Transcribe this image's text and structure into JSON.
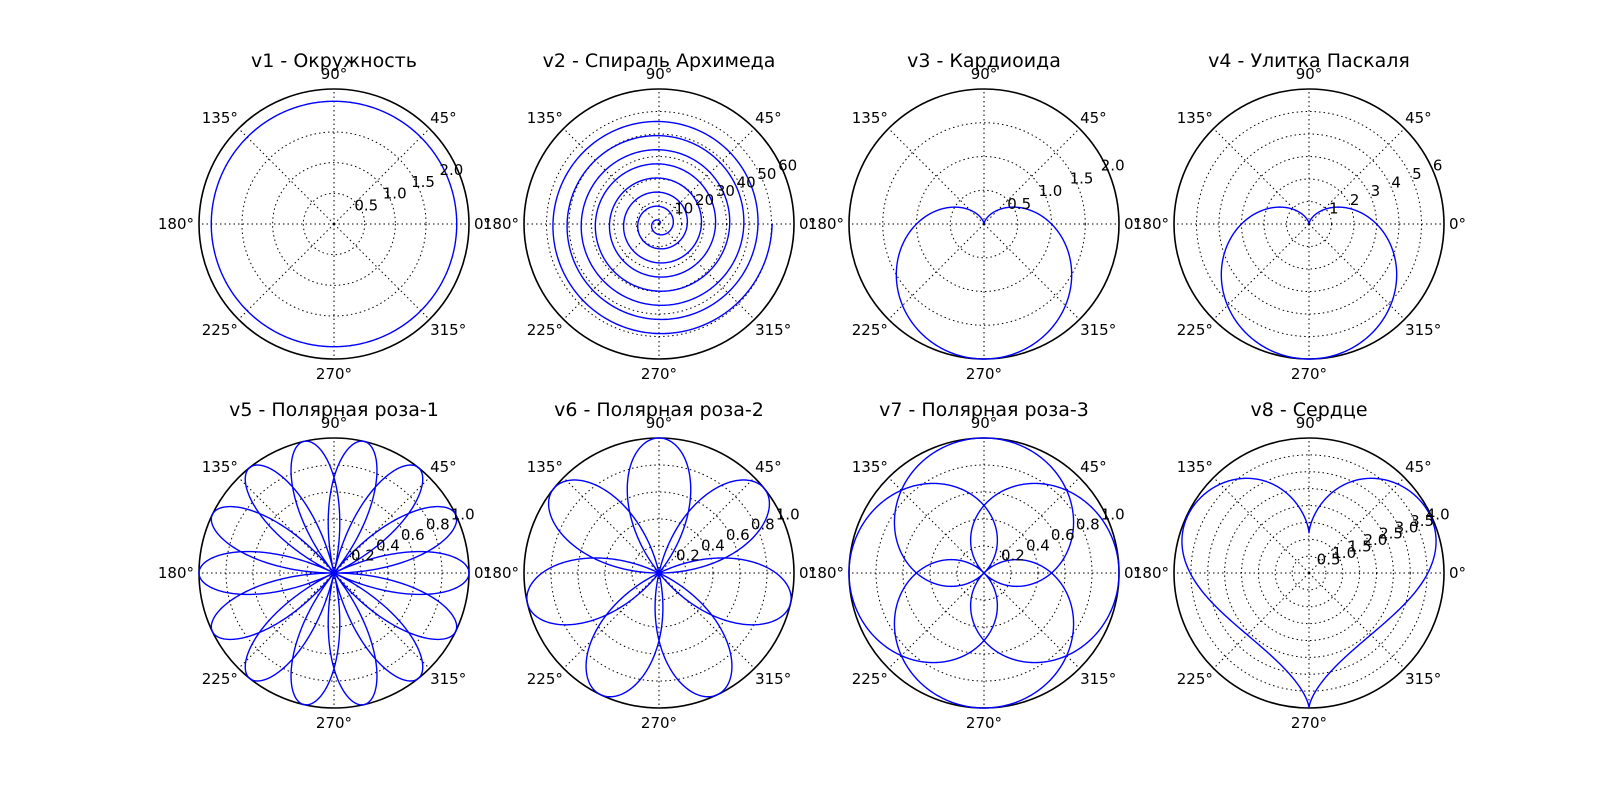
{
  "chart_data": [
    {
      "type": "line",
      "projection": "polar",
      "title": "v1 - Окружность",
      "rlim": [
        0,
        2.2
      ],
      "rticks": [
        "0.5",
        "1.0",
        "1.5",
        "2.0"
      ],
      "rvalues": [
        0.5,
        1.0,
        1.5,
        2.0
      ],
      "angle_ticks": [
        "0°",
        "45°",
        "90°",
        "135°",
        "180°",
        "225°",
        "270°",
        "315°"
      ],
      "grid": true,
      "curve": "r = 2 (circle)",
      "curve_id": "circle",
      "series": [
        {
          "color": "#0000ff"
        }
      ]
    },
    {
      "type": "line",
      "projection": "polar",
      "title": "v2 - Спираль Архимеда",
      "rlim": [
        0,
        60
      ],
      "rticks": [
        "10",
        "20",
        "30",
        "40",
        "50",
        "60"
      ],
      "rvalues": [
        10,
        20,
        30,
        40,
        50,
        60
      ],
      "angle_ticks": [
        "0°",
        "45°",
        "90°",
        "135°",
        "180°",
        "225°",
        "270°",
        "315°"
      ],
      "grid": true,
      "curve": "r = θ, θ ∈ [0, 16π]",
      "curve_id": "spiral",
      "series": [
        {
          "color": "#0000ff"
        }
      ]
    },
    {
      "type": "line",
      "projection": "polar",
      "title": "v3 - Кардиоида",
      "rlim": [
        0,
        2.0
      ],
      "rticks": [
        "0.5",
        "1.0",
        "1.5",
        "2.0"
      ],
      "rvalues": [
        0.5,
        1.0,
        1.5,
        2.0
      ],
      "angle_ticks": [
        "0°",
        "45°",
        "90°",
        "135°",
        "180°",
        "225°",
        "270°",
        "315°"
      ],
      "grid": true,
      "curve": "r = 1 − sin θ",
      "curve_id": "cardioid",
      "series": [
        {
          "color": "#0000ff"
        }
      ]
    },
    {
      "type": "line",
      "projection": "polar",
      "title": "v4 - Улитка Паскаля",
      "rlim": [
        0,
        6
      ],
      "rticks": [
        "1",
        "2",
        "3",
        "4",
        "5",
        "6"
      ],
      "rvalues": [
        1,
        2,
        3,
        4,
        5,
        6
      ],
      "angle_ticks": [
        "0°",
        "45°",
        "90°",
        "135°",
        "180°",
        "225°",
        "270°",
        "315°"
      ],
      "grid": true,
      "curve": "r = 3 − 3 sin θ",
      "curve_id": "limacon",
      "series": [
        {
          "color": "#0000ff"
        }
      ]
    },
    {
      "type": "line",
      "projection": "polar",
      "title": "v5 - Полярная роза-1",
      "rlim": [
        0,
        1.0
      ],
      "rticks": [
        "0.2",
        "0.4",
        "0.6",
        "0.8",
        "1.0"
      ],
      "rvalues": [
        0.2,
        0.4,
        0.6,
        0.8,
        1.0
      ],
      "angle_ticks": [
        "0°",
        "45°",
        "90°",
        "135°",
        "180°",
        "225°",
        "270°",
        "315°"
      ],
      "grid": true,
      "curve": "r = sin(7θ/2)",
      "curve_id": "rose1",
      "series": [
        {
          "color": "#0000ff"
        }
      ]
    },
    {
      "type": "line",
      "projection": "polar",
      "title": "v6 - Полярная роза-2",
      "rlim": [
        0,
        1.0
      ],
      "rticks": [
        "0.2",
        "0.4",
        "0.6",
        "0.8",
        "1.0"
      ],
      "rvalues": [
        0.2,
        0.4,
        0.6,
        0.8,
        1.0
      ],
      "angle_ticks": [
        "0°",
        "45°",
        "90°",
        "135°",
        "180°",
        "225°",
        "270°",
        "315°"
      ],
      "grid": true,
      "curve": "r = sin(7θ/3)",
      "curve_id": "rose2",
      "series": [
        {
          "color": "#0000ff"
        }
      ]
    },
    {
      "type": "line",
      "projection": "polar",
      "title": "v7 - Полярная роза-3",
      "rlim": [
        0,
        1.0
      ],
      "rticks": [
        "0.2",
        "0.4",
        "0.6",
        "0.8",
        "1.0"
      ],
      "rvalues": [
        0.2,
        0.4,
        0.6,
        0.8,
        1.0
      ],
      "angle_ticks": [
        "0°",
        "45°",
        "90°",
        "135°",
        "180°",
        "225°",
        "270°",
        "315°"
      ],
      "grid": true,
      "curve": "r = cos(2θ/3)",
      "curve_id": "rose3",
      "series": [
        {
          "color": "#0000ff"
        }
      ]
    },
    {
      "type": "line",
      "projection": "polar",
      "title": "v8 - Сердце",
      "rlim": [
        0,
        4.0
      ],
      "rticks": [
        "0.5",
        "1.0",
        "1.5",
        "2.0",
        "2.5",
        "3.0",
        "3.5",
        "4.0"
      ],
      "rvalues": [
        0.5,
        1.0,
        1.5,
        2.0,
        2.5,
        3.0,
        3.5,
        4.0
      ],
      "angle_ticks": [
        "0°",
        "45°",
        "90°",
        "135°",
        "180°",
        "225°",
        "270°",
        "315°"
      ],
      "grid": true,
      "curve": "heart curve, max r ≈ 4 at 270°",
      "curve_id": "heart",
      "series": [
        {
          "color": "#0000ff"
        }
      ]
    }
  ]
}
